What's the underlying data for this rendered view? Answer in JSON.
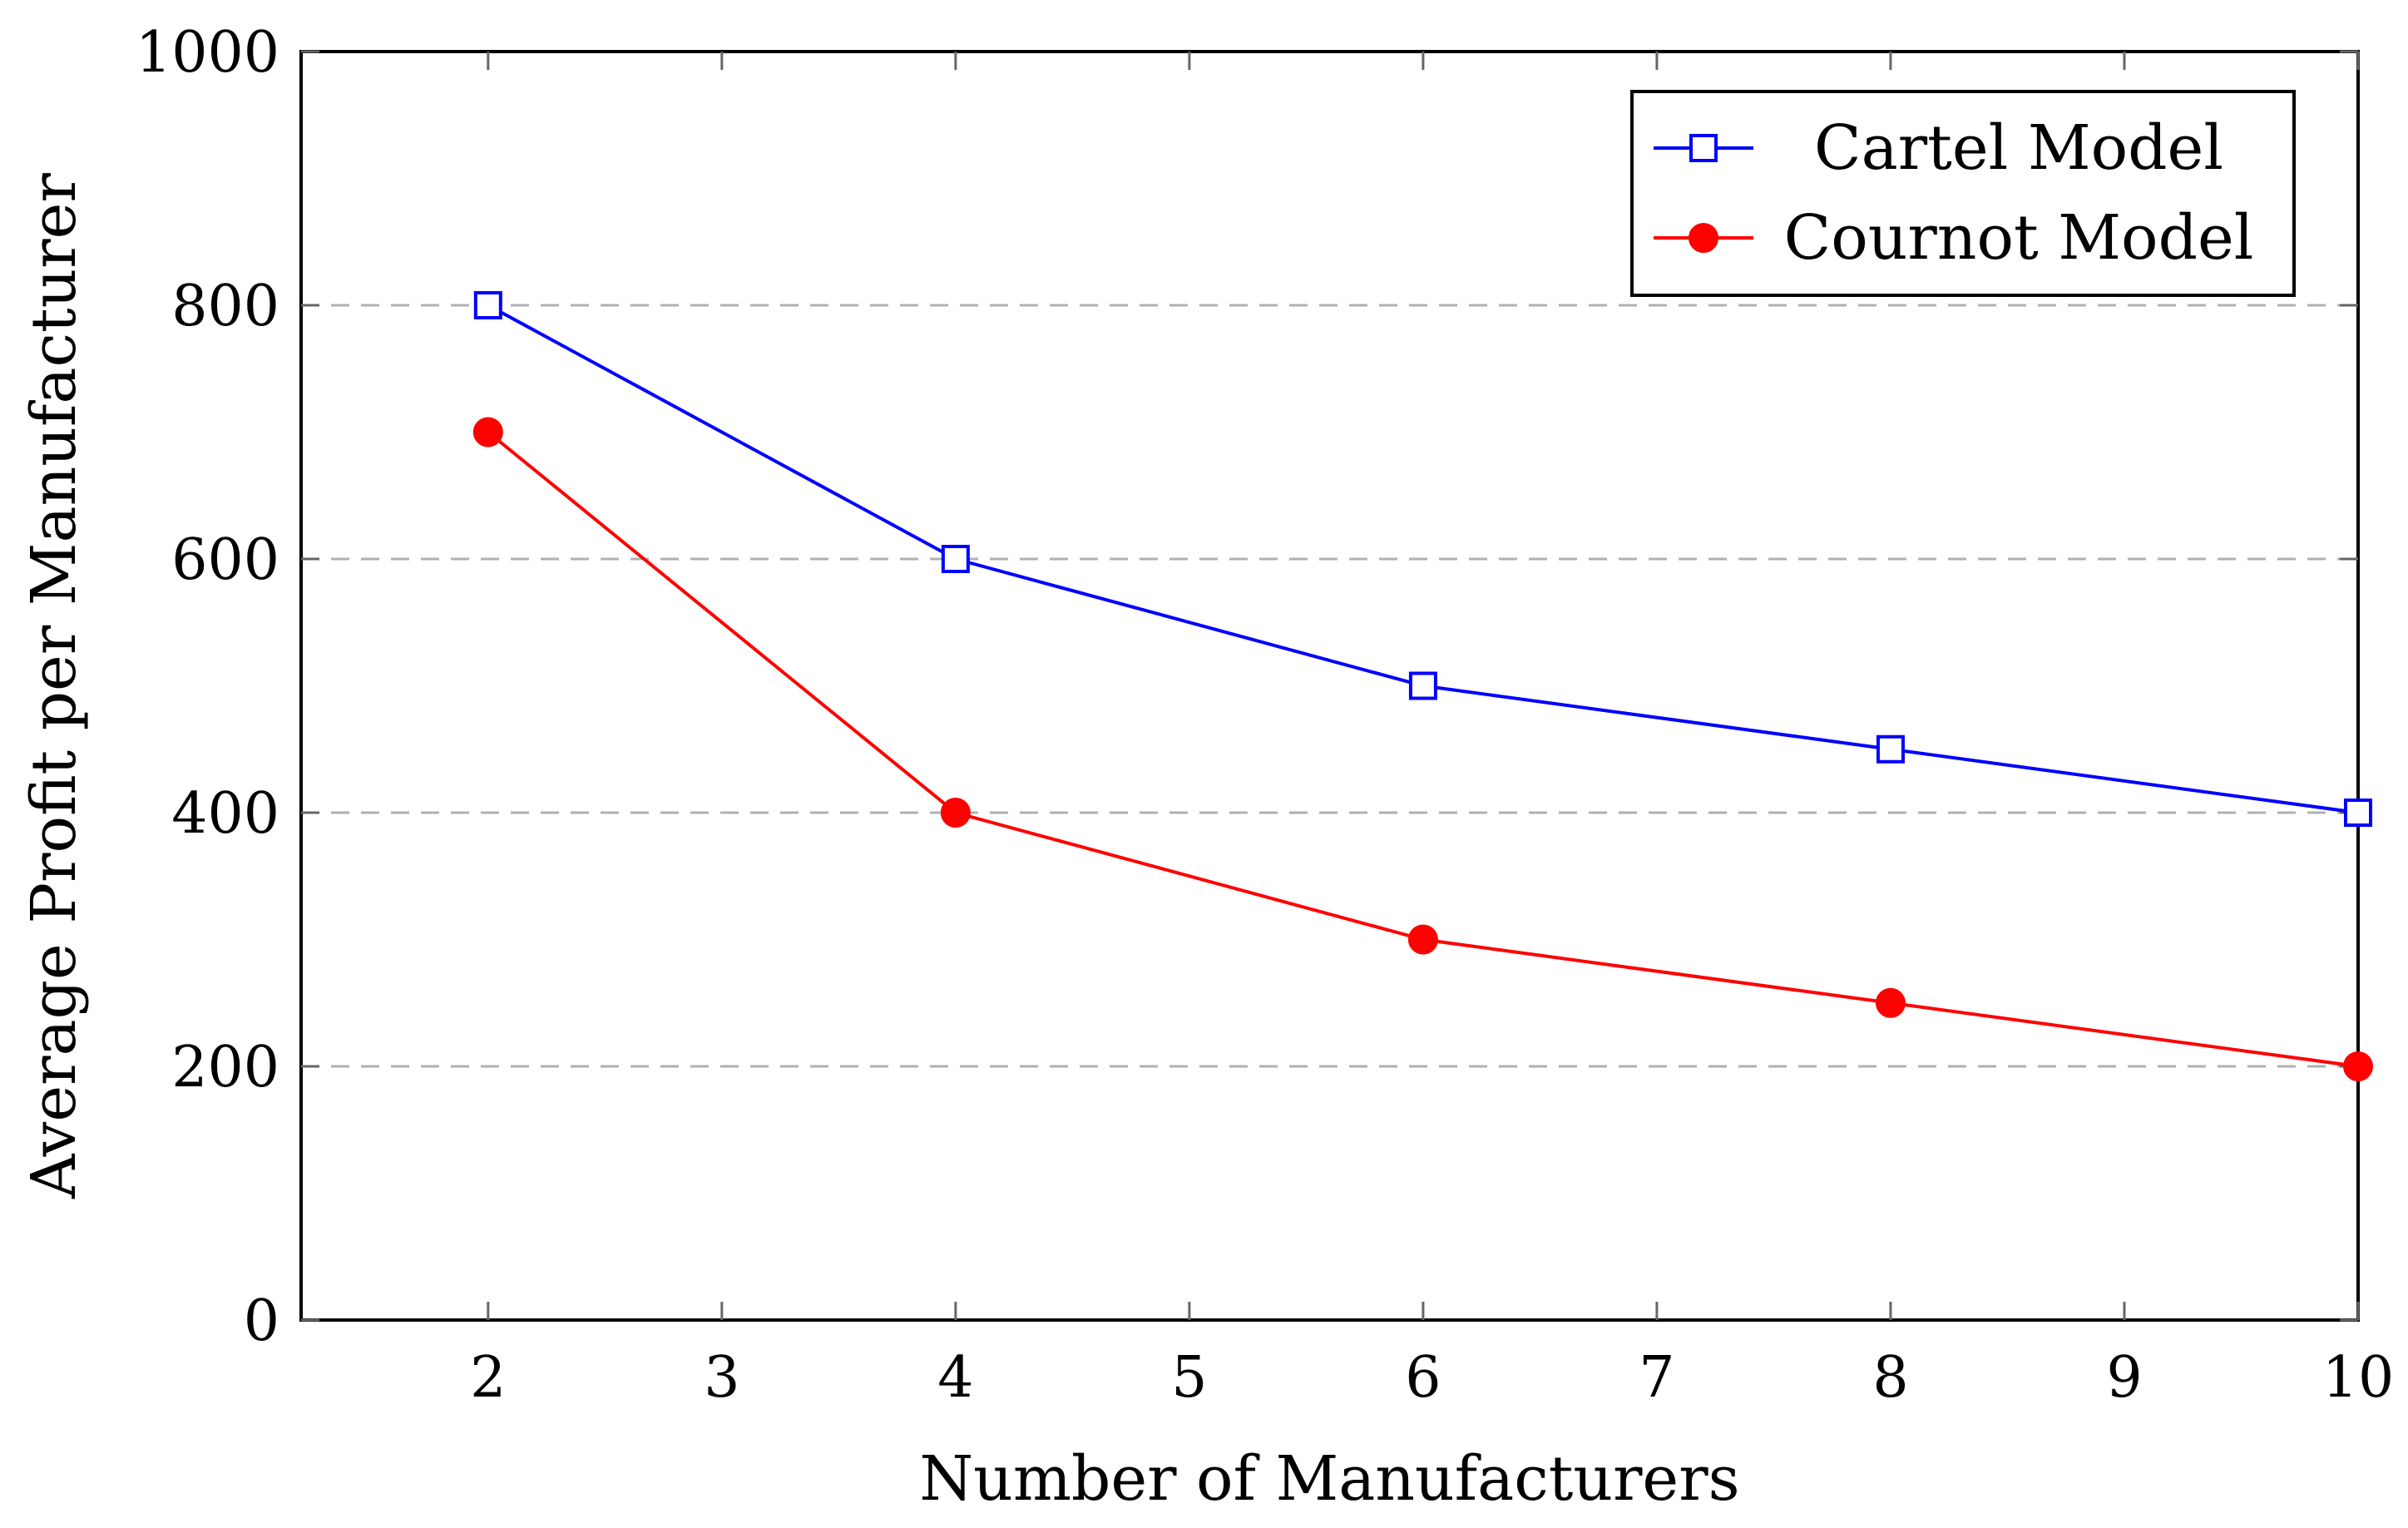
{
  "chart_data": {
    "type": "line",
    "title": "",
    "xlabel": "Number of Manufacturers",
    "ylabel": "Average Profit per Manufacturer",
    "xlim": [
      1.2,
      10
    ],
    "ylim": [
      0,
      1000
    ],
    "x_ticks": [
      2,
      3,
      4,
      5,
      6,
      7,
      8,
      9,
      10
    ],
    "y_ticks": [
      0,
      200,
      400,
      600,
      800,
      1000
    ],
    "grid": "horizontal dashed",
    "legend_position": "top-right",
    "series": [
      {
        "name": "Cartel Model",
        "color": "#0000ff",
        "marker": "open-square",
        "x": [
          2,
          4,
          6,
          8,
          10
        ],
        "values": [
          800,
          600,
          500,
          450,
          400
        ]
      },
      {
        "name": "Cournot Model",
        "color": "#ff0000",
        "marker": "filled-circle",
        "x": [
          2,
          4,
          6,
          8,
          10
        ],
        "values": [
          700,
          400,
          300,
          250,
          200
        ]
      }
    ]
  }
}
